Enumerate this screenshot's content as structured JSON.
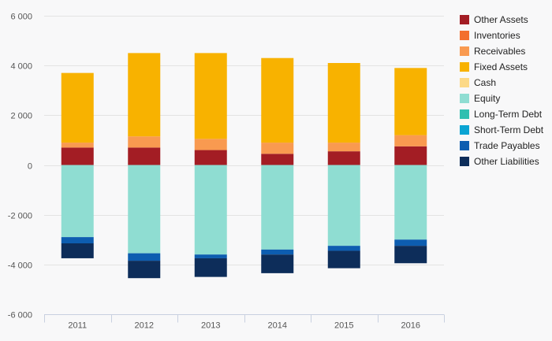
{
  "chart_data": {
    "type": "bar",
    "stacked": true,
    "categories": [
      "2011",
      "2012",
      "2013",
      "2014",
      "2015",
      "2016"
    ],
    "ylim": [
      -6000,
      6000
    ],
    "yticks": [
      6000,
      4000,
      2000,
      0,
      -2000,
      -4000,
      -6000
    ],
    "ytick_labels": [
      "6 000",
      "4 000",
      "2 000",
      "0",
      "-2 000",
      "-4 000",
      "-6 000"
    ],
    "grid": true,
    "legend_position": "right",
    "series": [
      {
        "name": "Other Assets",
        "color": "#a31d24",
        "values": [
          700,
          700,
          600,
          450,
          550,
          750
        ]
      },
      {
        "name": "Inventories",
        "color": "#f36f2e",
        "values": [
          0,
          0,
          0,
          0,
          0,
          0
        ]
      },
      {
        "name": "Receivables",
        "color": "#f99a50",
        "values": [
          200,
          450,
          450,
          450,
          350,
          450
        ]
      },
      {
        "name": "Fixed Assets",
        "color": "#f8b200",
        "values": [
          2800,
          3350,
          3450,
          3400,
          3200,
          2700
        ]
      },
      {
        "name": "Cash",
        "color": "#fcd986",
        "values": [
          0,
          0,
          0,
          0,
          0,
          0
        ]
      },
      {
        "name": "Equity",
        "color": "#8fddd2",
        "values": [
          -2900,
          -3550,
          -3600,
          -3400,
          -3250,
          -3000
        ]
      },
      {
        "name": "Long-Term Debt",
        "color": "#2fbfb0",
        "values": [
          0,
          0,
          0,
          0,
          0,
          0
        ]
      },
      {
        "name": "Short-Term Debt",
        "color": "#0aa4d3",
        "values": [
          0,
          0,
          0,
          0,
          0,
          0
        ]
      },
      {
        "name": "Trade Payables",
        "color": "#0d5db0",
        "values": [
          -250,
          -300,
          -150,
          -200,
          -200,
          -250
        ]
      },
      {
        "name": "Other Liabilities",
        "color": "#0d2d5a",
        "values": [
          -600,
          -700,
          -750,
          -750,
          -700,
          -700
        ]
      }
    ]
  }
}
